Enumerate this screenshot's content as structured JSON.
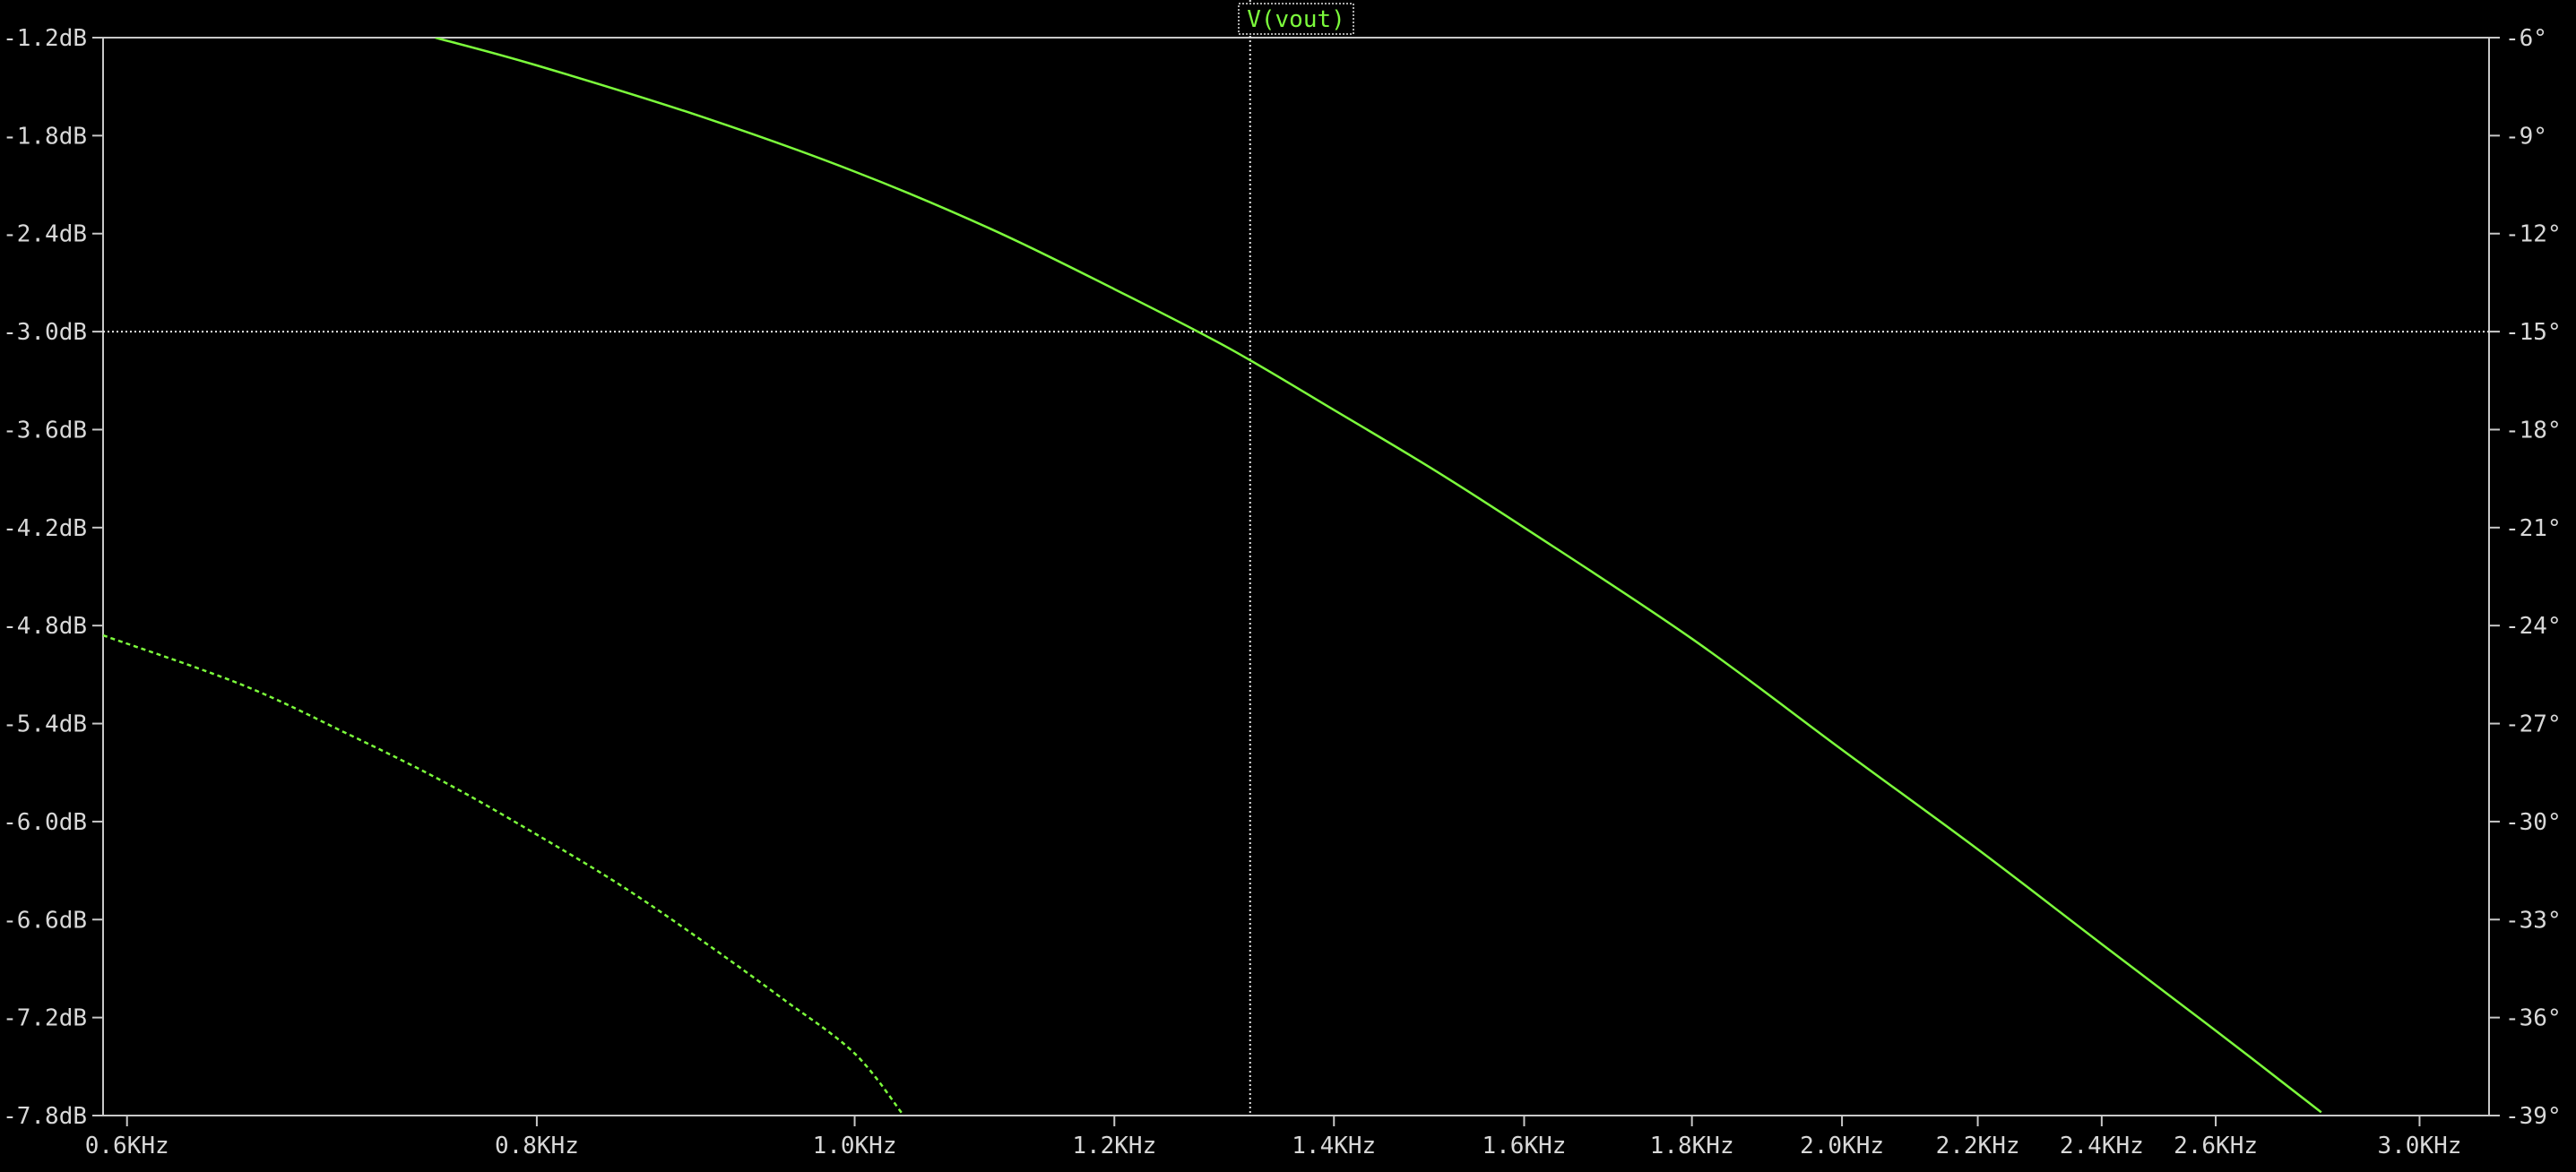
{
  "chart_data": {
    "type": "line",
    "title": "",
    "legend": [
      {
        "label": "V(vout)",
        "color": "#7CFC3C",
        "placement": "top-center"
      }
    ],
    "x_axis": {
      "label": "",
      "scale": "log",
      "range_hz": [
        590,
        3150
      ],
      "ticks": [
        {
          "value": 600,
          "label": "0.6KHz"
        },
        {
          "value": 800,
          "label": "0.8KHz"
        },
        {
          "value": 1000,
          "label": "1.0KHz"
        },
        {
          "value": 1200,
          "label": "1.2KHz"
        },
        {
          "value": 1400,
          "label": "1.4KHz"
        },
        {
          "value": 1600,
          "label": "1.6KHz"
        },
        {
          "value": 1800,
          "label": "1.8KHz"
        },
        {
          "value": 2000,
          "label": "2.0KHz"
        },
        {
          "value": 2200,
          "label": "2.2KHz"
        },
        {
          "value": 2400,
          "label": "2.4KHz"
        },
        {
          "value": 2600,
          "label": "2.6KHz"
        },
        {
          "value": 3000,
          "label": "3.0KHz"
        }
      ]
    },
    "y_axis_left": {
      "label": "",
      "unit": "dB",
      "range": [
        -7.8,
        -1.2
      ],
      "ticks": [
        {
          "value": -1.2,
          "label": "-1.2dB"
        },
        {
          "value": -1.8,
          "label": "-1.8dB"
        },
        {
          "value": -2.4,
          "label": "-2.4dB"
        },
        {
          "value": -3.0,
          "label": "-3.0dB"
        },
        {
          "value": -3.6,
          "label": "-3.6dB"
        },
        {
          "value": -4.2,
          "label": "-4.2dB"
        },
        {
          "value": -4.8,
          "label": "-4.8dB"
        },
        {
          "value": -5.4,
          "label": "-5.4dB"
        },
        {
          "value": -6.0,
          "label": "-6.0dB"
        },
        {
          "value": -6.6,
          "label": "-6.6dB"
        },
        {
          "value": -7.2,
          "label": "-7.2dB"
        },
        {
          "value": -7.8,
          "label": "-7.8dB"
        }
      ]
    },
    "y_axis_right": {
      "label": "",
      "unit": "deg",
      "range": [
        -39,
        -6
      ],
      "ticks": [
        {
          "value": -6,
          "label": "-6°"
        },
        {
          "value": -9,
          "label": "-9°"
        },
        {
          "value": -12,
          "label": "-12°"
        },
        {
          "value": -15,
          "label": "-15°"
        },
        {
          "value": -18,
          "label": "-18°"
        },
        {
          "value": -21,
          "label": "-21°"
        },
        {
          "value": -24,
          "label": "-24°"
        },
        {
          "value": -27,
          "label": "-27°"
        },
        {
          "value": -30,
          "label": "-30°"
        },
        {
          "value": -33,
          "label": "-33°"
        },
        {
          "value": -36,
          "label": "-36°"
        },
        {
          "value": -39,
          "label": "-39°"
        }
      ]
    },
    "series": [
      {
        "name": "V(vout)",
        "quantity": "magnitude",
        "axis": "left",
        "style": "solid",
        "color": "#7CFC3C",
        "points": [
          [
            745,
            -1.2
          ],
          [
            800,
            -1.37
          ],
          [
            900,
            -1.69
          ],
          [
            1000,
            -2.02
          ],
          [
            1100,
            -2.37
          ],
          [
            1200,
            -2.74
          ],
          [
            1300,
            -3.1
          ],
          [
            1400,
            -3.48
          ],
          [
            1500,
            -3.84
          ],
          [
            1600,
            -4.2
          ],
          [
            1800,
            -4.88
          ],
          [
            2000,
            -5.56
          ],
          [
            2200,
            -6.17
          ],
          [
            2400,
            -6.75
          ],
          [
            2600,
            -7.28
          ],
          [
            2800,
            -7.78
          ]
        ]
      },
      {
        "name": "V(vout)",
        "quantity": "phase",
        "axis": "right",
        "style": "dashed",
        "color": "#7CFC3C",
        "points": [
          [
            590,
            -24.3
          ],
          [
            650,
            -25.8
          ],
          [
            700,
            -27.3
          ],
          [
            750,
            -28.8
          ],
          [
            800,
            -30.4
          ],
          [
            850,
            -32.0
          ],
          [
            900,
            -33.7
          ],
          [
            950,
            -35.4
          ],
          [
            1000,
            -37.1
          ],
          [
            1035,
            -39.0
          ]
        ]
      }
    ],
    "cursors": [
      {
        "orientation": "vertical",
        "x": 1320
      },
      {
        "orientation": "horizontal",
        "y": -3.0
      }
    ],
    "grid": false
  }
}
